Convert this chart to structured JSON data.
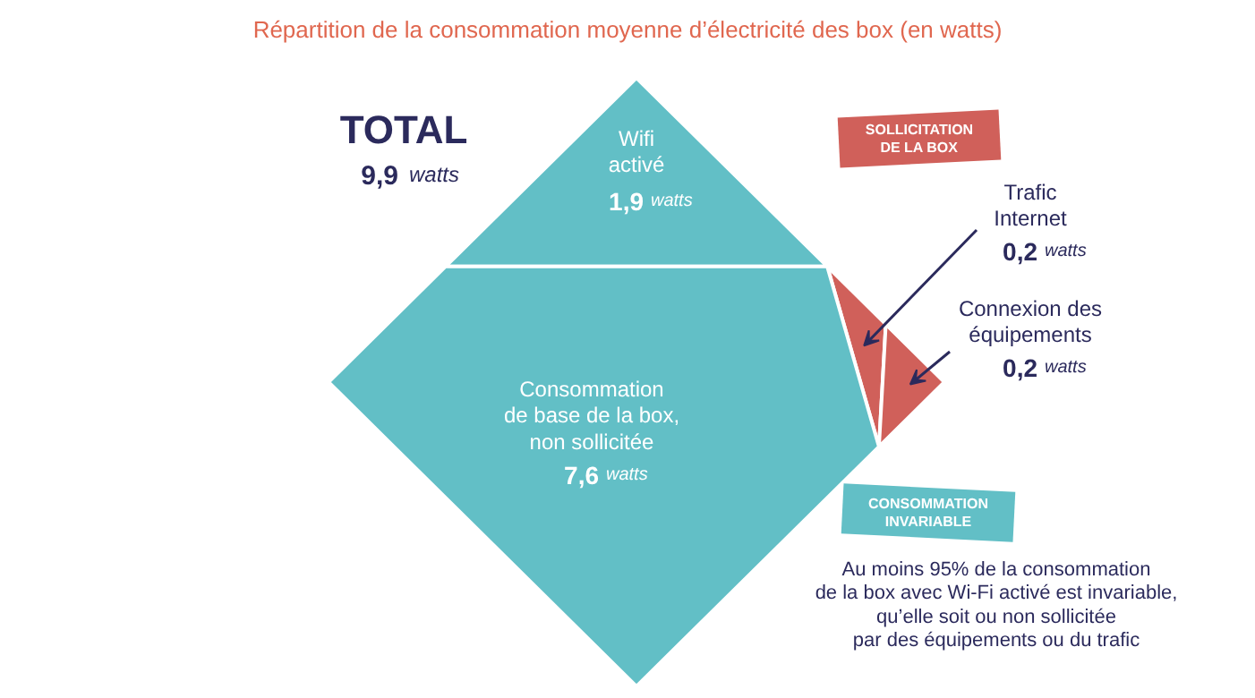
{
  "chart_data": {
    "type": "other",
    "title": "Répartition de la consommation moyenne d’électricité des box (en watts)",
    "categories": [
      "Wifi\nactivé",
      "Trafic\nInternet",
      "Connexion des\néquipements",
      "Consommation\nde base de la box,\nnon sollicitée"
    ],
    "values": [
      1.9,
      0.2,
      0.2,
      7.6
    ],
    "value_labels": [
      "1,9 watts",
      "0,2 watts",
      "0,2 watts",
      "7,6 watts"
    ],
    "colors": [
      "#62bfc6",
      "#d0605a",
      "#d0605a",
      "#62bfc6"
    ],
    "annotations": [
      "TOTAL",
      "9,9 watts",
      "SOLLICITATION\nDE LA BOX",
      "CONSOMMATION\nINVARIABLE",
      "Au moins 95% de la consommation\nde la box avec Wi-Fi activé est invariable,\nqu’elle soit ou non sollicitée\npar des équipements ou du trafic"
    ]
  }
}
